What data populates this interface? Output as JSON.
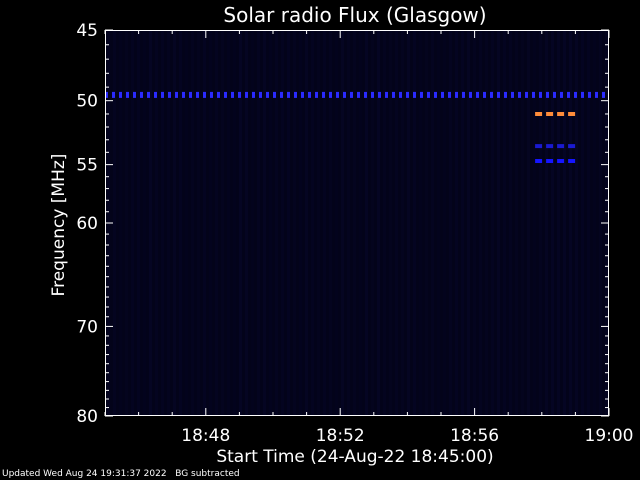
{
  "chart_data": {
    "type": "heatmap",
    "title": "Solar radio Flux (Glasgow)",
    "xlabel": "Start Time (24-Aug-22 18:45:00)",
    "ylabel": "Frequency [MHz]",
    "x_ticks": [
      "18:48",
      "18:52",
      "18:56",
      "19:00"
    ],
    "x_tick_minutes": [
      3,
      7,
      11,
      15
    ],
    "xlim_minutes": [
      0,
      15
    ],
    "y_ticks": [
      45,
      50,
      55,
      60,
      70,
      80
    ],
    "ylim": [
      45,
      80
    ],
    "y_scale": "log",
    "background_color": "#000000",
    "plot_color": "#03031a",
    "features": [
      {
        "kind": "dashed-band",
        "freq": 49.5,
        "x_start": 0,
        "x_end": 15,
        "color": "#2a2aff"
      },
      {
        "kind": "dashed-band",
        "freq": 51.0,
        "x_start": 12.8,
        "x_end": 14.0,
        "color": "#ff8c3a"
      },
      {
        "kind": "dashed-band",
        "freq": 53.5,
        "x_start": 12.8,
        "x_end": 14.0,
        "color": "#1a1ad0"
      },
      {
        "kind": "dashed-band",
        "freq": 54.7,
        "x_start": 12.8,
        "x_end": 14.0,
        "color": "#1515ff"
      }
    ]
  },
  "footer": {
    "updated": "Updated Wed Aug 24 19:31:37 2022",
    "note": "BG subtracted"
  }
}
